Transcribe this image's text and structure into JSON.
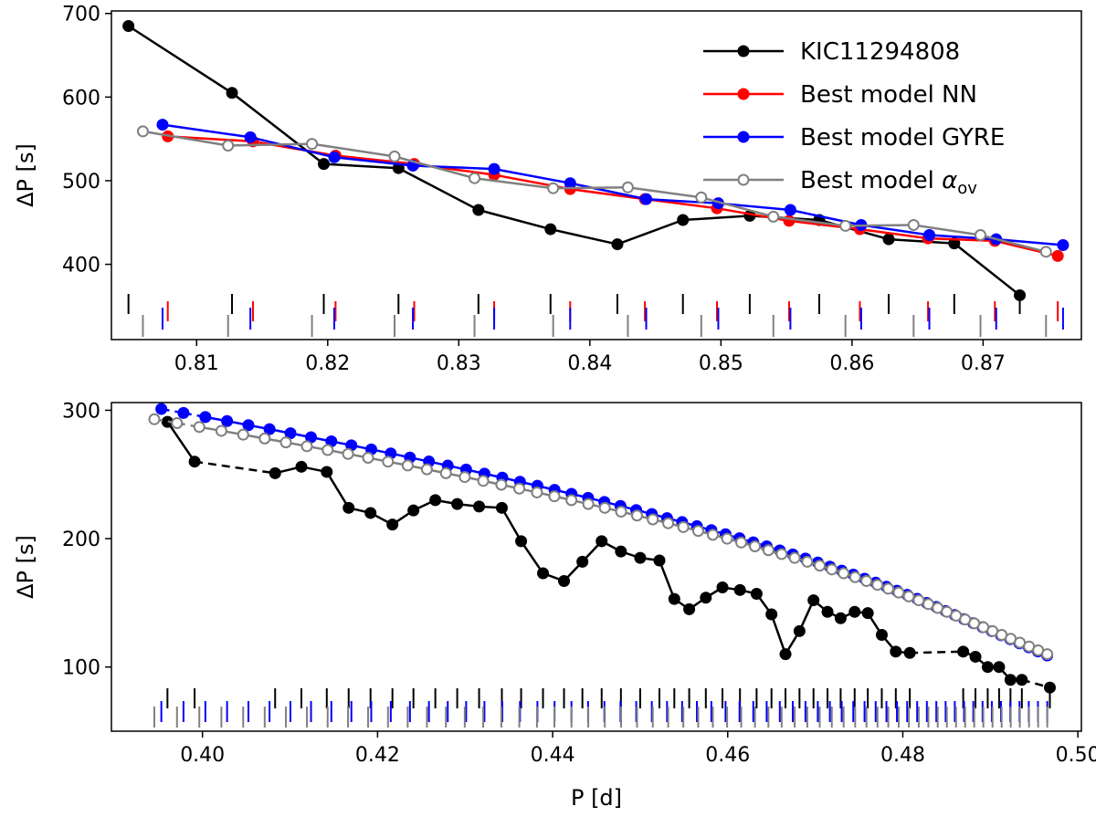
{
  "chart_data": [
    {
      "type": "line",
      "panel": "top",
      "xlabel": "P [d]",
      "ylabel": "ΔP [s]",
      "xlim": [
        0.8035,
        0.8775
      ],
      "ylim": [
        310,
        703
      ],
      "xticks": [
        0.81,
        0.82,
        0.83,
        0.84,
        0.85,
        0.86,
        0.87
      ],
      "xtick_labels": [
        "0.81",
        "0.82",
        "0.83",
        "0.84",
        "0.85",
        "0.86",
        "0.87"
      ],
      "yticks": [
        400,
        500,
        600,
        700
      ],
      "ytick_labels": [
        "400",
        "500",
        "600",
        "700"
      ],
      "legend_position": "top-right",
      "series": [
        {
          "name": "KIC11294808",
          "color": "#000000",
          "marker": "filled",
          "x": [
            0.8048,
            0.8127,
            0.8197,
            0.8254,
            0.8315,
            0.837,
            0.8421,
            0.8471,
            0.8522,
            0.8575,
            0.8628,
            0.8678,
            0.8728
          ],
          "y": [
            685,
            605,
            520,
            515,
            465,
            442,
            424,
            453,
            458,
            453,
            430,
            425,
            363
          ],
          "tick_marks": [
            0.8048,
            0.8127,
            0.8197,
            0.8254,
            0.8315,
            0.837,
            0.8421,
            0.8471,
            0.8522,
            0.8575,
            0.8628,
            0.8678,
            0.8728
          ]
        },
        {
          "name": "Best model NN",
          "color": "#ff0000",
          "marker": "filled",
          "x": [
            0.8078,
            0.8143,
            0.8206,
            0.8266,
            0.8327,
            0.8385,
            0.8442,
            0.8497,
            0.8552,
            0.8606,
            0.8658,
            0.8709,
            0.8757
          ],
          "y": [
            553,
            547,
            530,
            520,
            507,
            490,
            478,
            467,
            452,
            442,
            431,
            428,
            410
          ],
          "tick_marks": [
            0.8078,
            0.8143,
            0.8206,
            0.8266,
            0.8327,
            0.8385,
            0.8442,
            0.8497,
            0.8552,
            0.8606,
            0.8658,
            0.8709,
            0.8757
          ]
        },
        {
          "name": "Best model GYRE",
          "color": "#0000ff",
          "marker": "filled",
          "x": [
            0.8074,
            0.8141,
            0.8205,
            0.8265,
            0.8327,
            0.8385,
            0.8443,
            0.8498,
            0.8553,
            0.8607,
            0.8659,
            0.871,
            0.8761
          ],
          "y": [
            567,
            552,
            528,
            518,
            514,
            497,
            478,
            473,
            465,
            447,
            435,
            430,
            423
          ],
          "tick_marks": [
            0.8074,
            0.8141,
            0.8205,
            0.8265,
            0.8327,
            0.8385,
            0.8443,
            0.8498,
            0.8553,
            0.8607,
            0.8659,
            0.871,
            0.8761
          ]
        },
        {
          "name": "Best model α_ov",
          "color": "#808080",
          "marker": "open",
          "x": [
            0.8059,
            0.8124,
            0.8188,
            0.8251,
            0.8312,
            0.8372,
            0.8429,
            0.8485,
            0.854,
            0.8595,
            0.8647,
            0.8698,
            0.8748
          ],
          "y": [
            559,
            542,
            544,
            529,
            503,
            491,
            492,
            480,
            457,
            446,
            447,
            435,
            415
          ],
          "tick_marks": [
            0.8059,
            0.8124,
            0.8188,
            0.8251,
            0.8312,
            0.8372,
            0.8429,
            0.8485,
            0.854,
            0.8595,
            0.8647,
            0.8698,
            0.8748
          ]
        }
      ],
      "legend": [
        {
          "label": "KIC11294808",
          "color": "#000000",
          "marker": "filled"
        },
        {
          "label": "Best model NN",
          "color": "#ff0000",
          "marker": "filled"
        },
        {
          "label": "Best model GYRE",
          "color": "#0000ff",
          "marker": "filled"
        },
        {
          "label": "Best model α_ov",
          "color": "#808080",
          "marker": "open"
        }
      ]
    },
    {
      "type": "line",
      "panel": "bottom",
      "xlabel": "P [d]",
      "ylabel": "ΔP [s]",
      "xlim": [
        0.3896,
        0.5004
      ],
      "ylim": [
        50,
        306
      ],
      "xticks": [
        0.4,
        0.42,
        0.44,
        0.46,
        0.48,
        0.5
      ],
      "xtick_labels": [
        "0.40",
        "0.42",
        "0.44",
        "0.46",
        "0.48",
        "0.50"
      ],
      "yticks": [
        100,
        200,
        300
      ],
      "ytick_labels": [
        "100",
        "200",
        "300"
      ],
      "series": [
        {
          "name": "KIC11294808",
          "color": "#000000",
          "marker": "filled",
          "segments_dashed_after_gap": true,
          "x": [
            0.396,
            0.3991,
            0.4083,
            0.4113,
            0.4142,
            0.4167,
            0.4192,
            0.4217,
            0.4241,
            0.4266,
            0.4291,
            0.4316,
            0.4342,
            0.4364,
            0.4389,
            0.4413,
            0.4434,
            0.4456,
            0.4478,
            0.45,
            0.4522,
            0.4539,
            0.4556,
            0.4575,
            0.4594,
            0.4614,
            0.4633,
            0.465,
            0.4666,
            0.4682,
            0.4698,
            0.4714,
            0.4729,
            0.4745,
            0.476,
            0.4776,
            0.4792,
            0.4808,
            0.4869,
            0.4883,
            0.4897,
            0.491,
            0.4923,
            0.4936,
            0.4968
          ],
          "y": [
            291,
            260,
            251,
            256,
            252,
            224,
            220,
            211,
            222,
            230,
            227,
            225,
            224,
            198,
            173,
            167,
            182,
            198,
            190,
            185,
            183,
            153,
            145,
            154,
            162,
            160,
            157,
            141,
            110,
            128,
            152,
            143,
            138,
            143,
            142,
            125,
            112,
            111,
            112,
            108,
            100,
            100,
            90,
            90,
            84
          ],
          "dashed_breaks": [
            [
              0.3991,
              0.4083
            ],
            [
              0.4808,
              0.4869
            ],
            [
              0.4936,
              0.4968
            ]
          ],
          "tick_marks": [
            0.396,
            0.3991,
            0.4083,
            0.4113,
            0.4142,
            0.4167,
            0.4192,
            0.4217,
            0.4241,
            0.4266,
            0.4291,
            0.4316,
            0.4342,
            0.4364,
            0.4389,
            0.4413,
            0.4434,
            0.4456,
            0.4478,
            0.45,
            0.4522,
            0.4539,
            0.4556,
            0.4575,
            0.4594,
            0.4614,
            0.4633,
            0.465,
            0.4666,
            0.4682,
            0.4698,
            0.4714,
            0.4729,
            0.4745,
            0.476,
            0.4776,
            0.4792,
            0.4808,
            0.4869,
            0.4883,
            0.4897,
            0.491,
            0.4923,
            0.4936,
            0.4968
          ]
        },
        {
          "name": "Best model GYRE",
          "color": "#0000ff",
          "marker": "filled",
          "x0": 0.3953,
          "step_start": 0.003,
          "step_end": 0.00125,
          "count": 62,
          "y_start": 301,
          "y_end": 109,
          "first_gap_dashed": true
        },
        {
          "name": "Best model α_ov",
          "color": "#808080",
          "marker": "open",
          "x0": 0.3945,
          "step_start": 0.0031,
          "step_end": 0.00125,
          "count": 62,
          "y_start": 293,
          "y_end": 110,
          "first_gap_dashed": true
        }
      ]
    }
  ]
}
